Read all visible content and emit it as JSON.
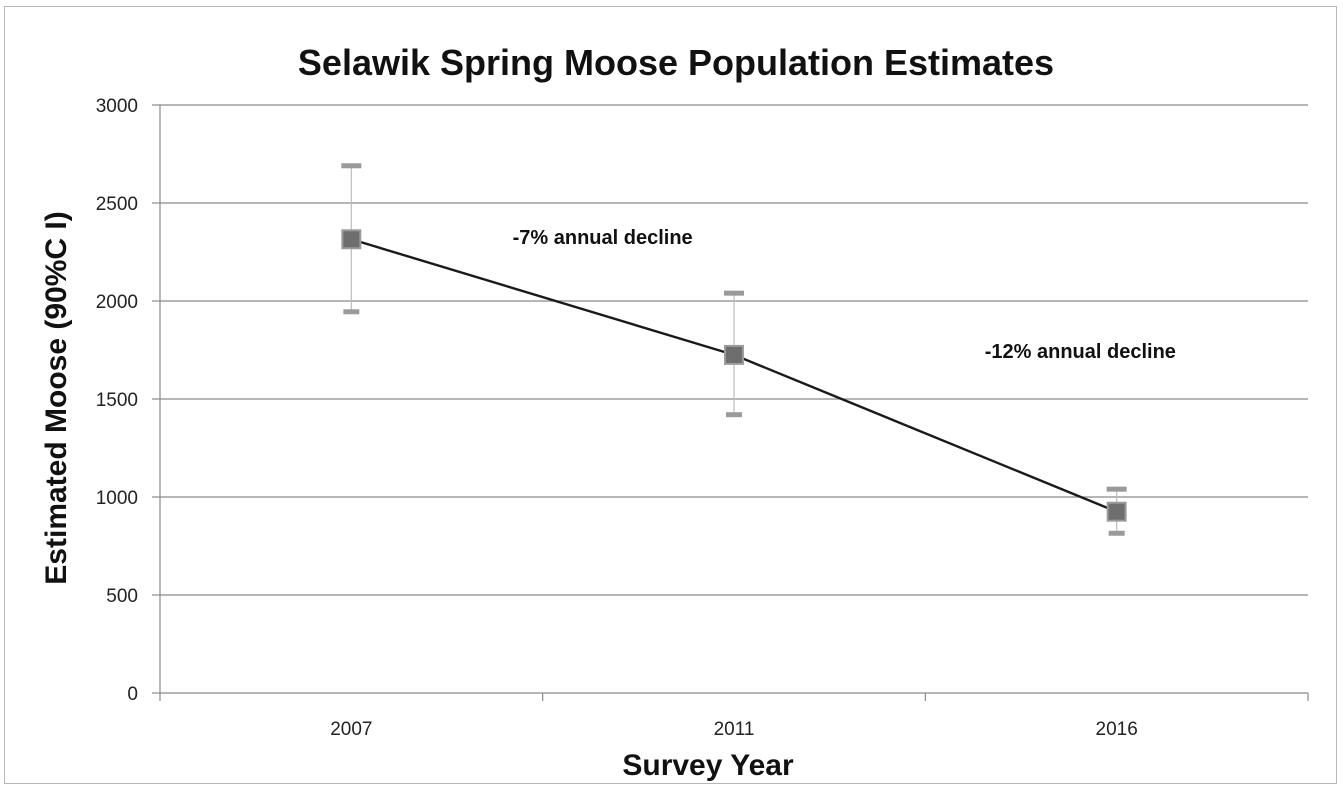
{
  "chart_data": {
    "type": "line",
    "title": "Selawik Spring Moose Population Estimates",
    "xlabel": "Survey Year",
    "ylabel": "Estimated Moose  (90%C I)",
    "categories": [
      "2007",
      "2011",
      "2016"
    ],
    "series": [
      {
        "values": [
          2315,
          1725,
          925
        ],
        "ci_upper": [
          2690,
          2040,
          1040
        ],
        "ci_lower": [
          1945,
          1420,
          815
        ]
      }
    ],
    "ylim": [
      0,
      3000
    ],
    "yticks": [
      0,
      500,
      1000,
      1500,
      2000,
      2500,
      3000
    ],
    "grid": true,
    "legend": "none",
    "annotations": [
      {
        "text": "-7% annual decline"
      },
      {
        "text": "-12% annual decline"
      }
    ],
    "colors": {
      "line": "#1a1a1a",
      "marker": "#6e6e6e",
      "error_bar": "#9a9a9a",
      "grid": "#8a8a8a"
    }
  }
}
